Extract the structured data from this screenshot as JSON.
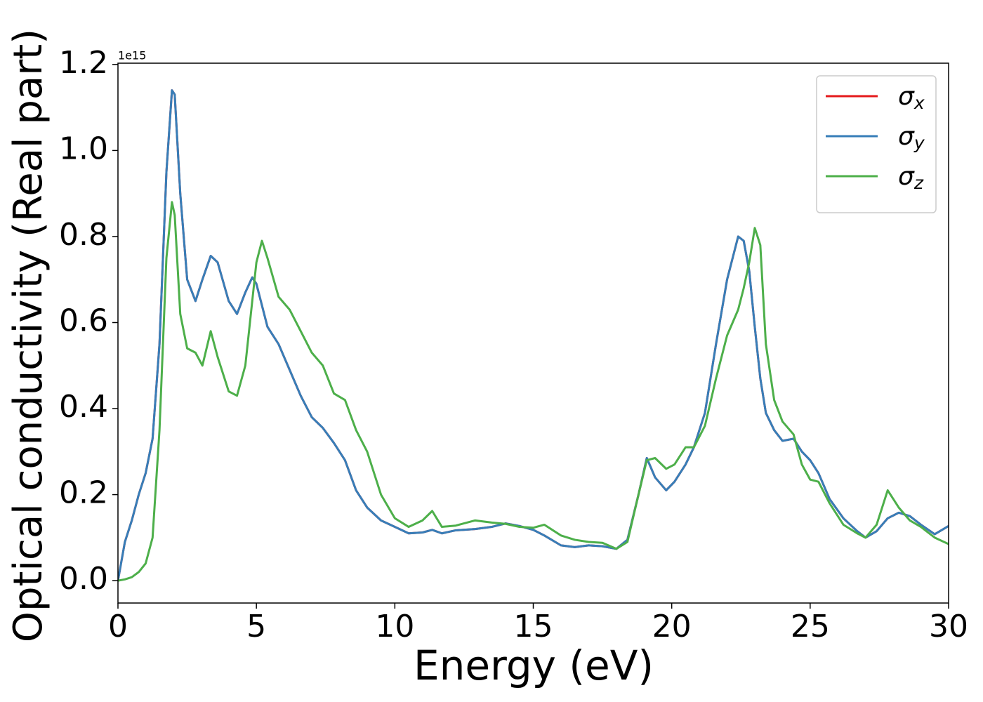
{
  "chart_data": {
    "type": "line",
    "xlabel": "Energy (eV)",
    "ylabel": "Optical conductivity (Real part)",
    "offset_text": "1e15",
    "x": [
      0,
      0.25,
      0.5,
      0.75,
      1.0,
      1.25,
      1.5,
      1.75,
      1.95,
      2.05,
      2.25,
      2.5,
      2.8,
      3.05,
      3.35,
      3.6,
      4.0,
      4.3,
      4.6,
      4.85,
      5.0,
      5.2,
      5.4,
      5.8,
      6.2,
      6.6,
      7.0,
      7.4,
      7.8,
      8.2,
      8.6,
      9.0,
      9.5,
      10.0,
      10.5,
      11.0,
      11.35,
      11.7,
      12.2,
      12.9,
      13.5,
      14.0,
      14.5,
      15.0,
      15.4,
      16.0,
      16.5,
      17.0,
      17.5,
      18.0,
      18.4,
      18.8,
      19.1,
      19.4,
      19.8,
      20.1,
      20.5,
      20.8,
      21.2,
      21.6,
      22.0,
      22.4,
      22.6,
      22.8,
      23.0,
      23.2,
      23.4,
      23.7,
      24.0,
      24.4,
      24.7,
      25.0,
      25.3,
      25.7,
      26.2,
      26.7,
      27.0,
      27.4,
      27.8,
      28.2,
      28.6,
      29.0,
      29.5,
      30
    ],
    "series": [
      {
        "name": "σx",
        "color": "#e41a1c",
        "values": [
          0.0,
          0.09,
          0.14,
          0.2,
          0.25,
          0.33,
          0.55,
          0.95,
          1.14,
          1.13,
          0.9,
          0.7,
          0.65,
          0.7,
          0.755,
          0.74,
          0.65,
          0.62,
          0.67,
          0.705,
          0.69,
          0.64,
          0.59,
          0.55,
          0.49,
          0.43,
          0.38,
          0.355,
          0.32,
          0.28,
          0.21,
          0.17,
          0.14,
          0.125,
          0.11,
          0.112,
          0.118,
          0.11,
          0.117,
          0.12,
          0.125,
          0.133,
          0.127,
          0.118,
          0.105,
          0.082,
          0.078,
          0.082,
          0.08,
          0.074,
          0.095,
          0.2,
          0.285,
          0.24,
          0.21,
          0.23,
          0.27,
          0.31,
          0.39,
          0.55,
          0.7,
          0.8,
          0.79,
          0.72,
          0.59,
          0.47,
          0.39,
          0.35,
          0.325,
          0.33,
          0.3,
          0.28,
          0.25,
          0.19,
          0.145,
          0.115,
          0.1,
          0.115,
          0.145,
          0.158,
          0.15,
          0.13,
          0.108,
          0.127
        ]
      },
      {
        "name": "σy",
        "color": "#377eb8",
        "values": [
          0.0,
          0.09,
          0.14,
          0.2,
          0.25,
          0.33,
          0.55,
          0.95,
          1.14,
          1.13,
          0.9,
          0.7,
          0.65,
          0.7,
          0.755,
          0.74,
          0.65,
          0.62,
          0.67,
          0.705,
          0.69,
          0.64,
          0.59,
          0.55,
          0.49,
          0.43,
          0.38,
          0.355,
          0.32,
          0.28,
          0.21,
          0.17,
          0.14,
          0.125,
          0.11,
          0.112,
          0.118,
          0.11,
          0.117,
          0.12,
          0.125,
          0.133,
          0.127,
          0.118,
          0.105,
          0.082,
          0.078,
          0.082,
          0.08,
          0.074,
          0.095,
          0.2,
          0.285,
          0.24,
          0.21,
          0.23,
          0.27,
          0.31,
          0.39,
          0.55,
          0.7,
          0.8,
          0.79,
          0.72,
          0.59,
          0.47,
          0.39,
          0.35,
          0.325,
          0.33,
          0.3,
          0.28,
          0.25,
          0.19,
          0.145,
          0.115,
          0.1,
          0.115,
          0.145,
          0.158,
          0.15,
          0.13,
          0.108,
          0.127
        ]
      },
      {
        "name": "σz",
        "color": "#4daf4a",
        "values": [
          0.0,
          0.003,
          0.008,
          0.02,
          0.04,
          0.1,
          0.35,
          0.75,
          0.88,
          0.85,
          0.62,
          0.54,
          0.53,
          0.5,
          0.58,
          0.52,
          0.44,
          0.43,
          0.5,
          0.65,
          0.74,
          0.79,
          0.75,
          0.66,
          0.63,
          0.58,
          0.53,
          0.5,
          0.435,
          0.42,
          0.35,
          0.3,
          0.2,
          0.145,
          0.125,
          0.14,
          0.162,
          0.125,
          0.128,
          0.14,
          0.135,
          0.132,
          0.125,
          0.123,
          0.13,
          0.105,
          0.095,
          0.09,
          0.088,
          0.074,
          0.09,
          0.2,
          0.28,
          0.285,
          0.26,
          0.27,
          0.31,
          0.31,
          0.36,
          0.47,
          0.57,
          0.63,
          0.68,
          0.74,
          0.82,
          0.78,
          0.55,
          0.42,
          0.37,
          0.34,
          0.27,
          0.235,
          0.23,
          0.18,
          0.13,
          0.11,
          0.1,
          0.13,
          0.21,
          0.17,
          0.14,
          0.125,
          0.1,
          0.085
        ]
      }
    ],
    "xlim": [
      0,
      30
    ],
    "xticks": [
      0,
      5,
      10,
      15,
      20,
      25,
      30
    ],
    "ylim": [
      -0.052,
      1.203
    ],
    "yticks": [
      {
        "value": 0,
        "label": "0.0"
      },
      0.2,
      0.4,
      0.6,
      0.8,
      {
        "value": 1,
        "label": "1.0"
      },
      1.2
    ],
    "grid": false,
    "legend_loc": "upper right"
  }
}
